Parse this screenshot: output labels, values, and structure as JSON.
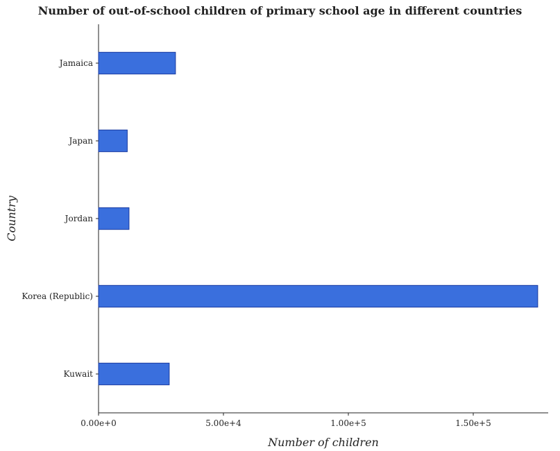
{
  "chart_data": {
    "type": "bar",
    "orientation": "horizontal",
    "title": "Number of out-of-school children of primary school age in different countries",
    "xlabel": "Number of children",
    "ylabel": "Country",
    "categories": [
      "Jamaica",
      "Japan",
      "Jordan",
      "Korea (Republic)",
      "Kuwait"
    ],
    "values": [
      30800,
      11500,
      12200,
      175800,
      28300
    ],
    "xlim": [
      0,
      180000
    ],
    "xticks": [
      0,
      50000,
      100000,
      150000
    ],
    "xtick_labels": [
      "0.00e+0",
      "5.00e+4",
      "1.00e+5",
      "1.50e+5"
    ],
    "bar_color": "#3a6fdd",
    "bar_edge_color": "#1a3aa0",
    "grid": false
  }
}
